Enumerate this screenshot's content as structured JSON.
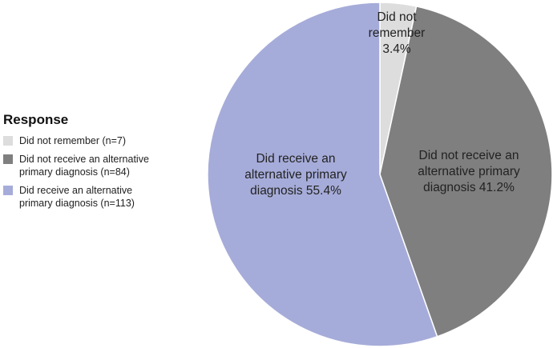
{
  "chart_data": {
    "type": "pie",
    "legend_title": "Response",
    "legend_position": "left",
    "slices": [
      {
        "legend": "Did not remember (n=7)",
        "label_lines": [
          "Did not",
          "remember",
          "3.4%"
        ],
        "value": 3.4,
        "n": 7,
        "color": "#dddddd"
      },
      {
        "legend": "Did not receive an alternative\nprimary diagnosis (n=84)",
        "label_lines": [
          "Did not receive an",
          "alternative primary",
          "diagnosis 41.2%"
        ],
        "value": 41.2,
        "n": 84,
        "color": "#7f7f7f"
      },
      {
        "legend": "Did receive an alternative\nprimary diagnosis (n=113)",
        "label_lines": [
          "Did receive an",
          "alternative primary",
          "diagnosis 55.4%"
        ],
        "value": 55.4,
        "n": 113,
        "color": "#a6acd9"
      }
    ]
  }
}
